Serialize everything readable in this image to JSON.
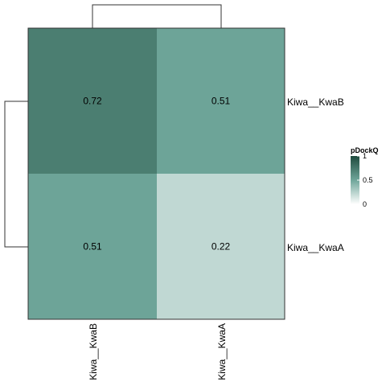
{
  "chart_data": {
    "type": "heatmap",
    "rows": [
      "Kiwa__KwaB",
      "Kiwa__KwaA"
    ],
    "columns": [
      "Kiwa__KwaB",
      "Kiwa__KwaA"
    ],
    "values": [
      [
        0.72,
        0.51
      ],
      [
        0.51,
        0.22
      ]
    ],
    "value_labels": [
      [
        "0.72",
        "0.51"
      ],
      [
        "0.51",
        "0.22"
      ]
    ],
    "legend": {
      "title": "pDockQ",
      "ticks": [
        {
          "value": 1,
          "label": "1"
        },
        {
          "value": 0.5,
          "label": "0.5"
        },
        {
          "value": 0,
          "label": "0"
        }
      ],
      "range": [
        0,
        1
      ]
    },
    "colors": {
      "low": "#ffffff",
      "mid": "#6fa69a",
      "high": "#1e4a3d"
    },
    "dendrogram": {
      "rows": true,
      "columns": true
    }
  }
}
